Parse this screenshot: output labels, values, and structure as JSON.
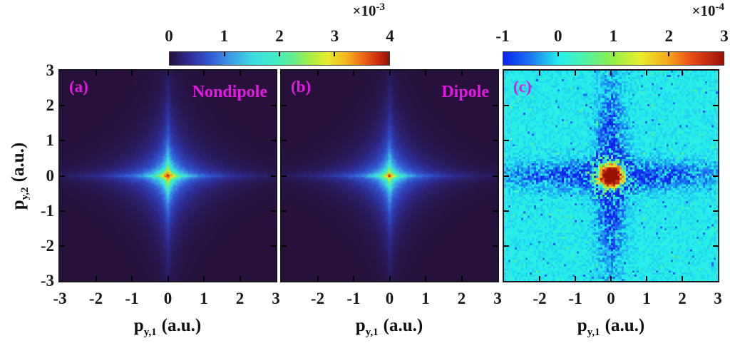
{
  "figure": {
    "background": "#ffffff",
    "tick_color": "#1a1a1a",
    "panel_label_color": "#e418e4",
    "axis_color": "#111111"
  },
  "axes": {
    "x_p": "p",
    "x_sub": "y,1",
    "x_unit": "(a.u.)",
    "y_p": "p",
    "y_sub": "y,2",
    "y_unit": "(a.u.)"
  },
  "colormaps": {
    "dark_jet": [
      [
        0.0,
        "#27103a"
      ],
      [
        0.09,
        "#2e2d96"
      ],
      [
        0.18,
        "#3156d2"
      ],
      [
        0.28,
        "#3d9ce6"
      ],
      [
        0.38,
        "#3bdce2"
      ],
      [
        0.48,
        "#40ecc8"
      ],
      [
        0.56,
        "#62ee8e"
      ],
      [
        0.64,
        "#a8ee46"
      ],
      [
        0.72,
        "#e8ea2c"
      ],
      [
        0.8,
        "#f4b81e"
      ],
      [
        0.88,
        "#ee6714"
      ],
      [
        0.95,
        "#cc2c0c"
      ],
      [
        1.0,
        "#8e1206"
      ]
    ],
    "jet_c": [
      [
        0.0,
        "#0b24ee"
      ],
      [
        0.12,
        "#1a74f2"
      ],
      [
        0.25,
        "#24eef0"
      ],
      [
        0.37,
        "#4ef2a6"
      ],
      [
        0.5,
        "#92f046"
      ],
      [
        0.62,
        "#e6ee2c"
      ],
      [
        0.74,
        "#f6ac1c"
      ],
      [
        0.86,
        "#e84814"
      ],
      [
        1.0,
        "#9a1006"
      ]
    ]
  },
  "colorbars": [
    {
      "base": "×10",
      "exp": "-3",
      "ticks": [
        "0",
        "1",
        "2",
        "3",
        "4"
      ],
      "colormap": "dark_jet"
    },
    {
      "base": "×10",
      "exp": "-4",
      "ticks": [
        "-1",
        "0",
        "1",
        "2",
        "3"
      ],
      "colormap": "jet_c"
    }
  ],
  "chart_data": [
    {
      "type": "heatmap",
      "panel": "(a)",
      "annotation": "Nondipole",
      "xlim": [
        -3,
        3
      ],
      "ylim": [
        -3,
        3
      ],
      "xticks": [
        -3,
        -2,
        -1,
        0,
        1,
        2,
        3
      ],
      "yticks": [
        -3,
        -2,
        -1,
        0,
        1,
        2,
        3
      ],
      "xtick_labels": [
        [
          "-3",
          -3
        ],
        [
          "-2",
          -2
        ],
        [
          "-1",
          -1
        ],
        [
          "0",
          0
        ],
        [
          "1",
          1
        ],
        [
          "2",
          2
        ],
        [
          "3",
          3
        ]
      ],
      "ytick_labels": [
        [
          "3",
          3
        ],
        [
          "2",
          2
        ],
        [
          "1",
          1
        ],
        [
          "0",
          0
        ],
        [
          "-1",
          -1
        ],
        [
          "-2",
          -2
        ],
        [
          "-3",
          -3
        ]
      ],
      "scale_min": 0,
      "scale_max": 0.004,
      "colormap": "dark_jet",
      "model": {
        "kind": "star",
        "unit": 0.004,
        "core_amp": 0.62,
        "core_sigma": 0.6,
        "arm_amp": 0.5,
        "arm_sigma": 1.15,
        "noise": 0.12,
        "seed": 1
      }
    },
    {
      "type": "heatmap",
      "panel": "(b)",
      "annotation": "Dipole",
      "xlim": [
        -3,
        3
      ],
      "ylim": [
        -3,
        3
      ],
      "xticks": [
        -3,
        -2,
        -1,
        0,
        1,
        2,
        3
      ],
      "yticks": [
        -3,
        -2,
        -1,
        0,
        1,
        2,
        3
      ],
      "xtick_labels": [
        [
          "-2",
          -2
        ],
        [
          "-1",
          -1
        ],
        [
          "0",
          0
        ],
        [
          "1",
          1
        ],
        [
          "2",
          2
        ],
        [
          "3",
          3
        ]
      ],
      "ytick_labels": [],
      "scale_min": 0,
      "scale_max": 0.004,
      "colormap": "dark_jet",
      "model": {
        "kind": "star",
        "unit": 0.004,
        "core_amp": 0.54,
        "core_sigma": 0.55,
        "arm_amp": 0.5,
        "arm_sigma": 1.12,
        "noise": 0.12,
        "seed": 2
      }
    },
    {
      "type": "heatmap",
      "panel": "(c)",
      "annotation": "",
      "xlim": [
        -3,
        3
      ],
      "ylim": [
        -3,
        3
      ],
      "xticks": [
        -3,
        -2,
        -1,
        0,
        1,
        2,
        3
      ],
      "yticks": [
        -3,
        -2,
        -1,
        0,
        1,
        2,
        3
      ],
      "xtick_labels": [
        [
          "-2",
          -2
        ],
        [
          "-1",
          -1
        ],
        [
          "0",
          0
        ],
        [
          "1",
          1
        ],
        [
          "2",
          2
        ],
        [
          "3",
          3
        ]
      ],
      "ytick_labels": [],
      "scale_min": -0.0001,
      "scale_max": 0.0003,
      "colormap": "jet_c",
      "model": {
        "kind": "diff",
        "unit": 0.0001,
        "peak_amp": 3.7,
        "peak_sigma": 0.36,
        "arm_amp_h": 1.0,
        "arm_amp_v": 1.05,
        "arm_width": 0.34,
        "arm_len_h": 2.7,
        "arm_len_v": 2.3,
        "noise_base": 0.13,
        "noise_arm": 0.8,
        "ring_amp": 0.8,
        "ring_r": 0.45,
        "ring_w": 0.25,
        "seed": 3
      }
    }
  ]
}
